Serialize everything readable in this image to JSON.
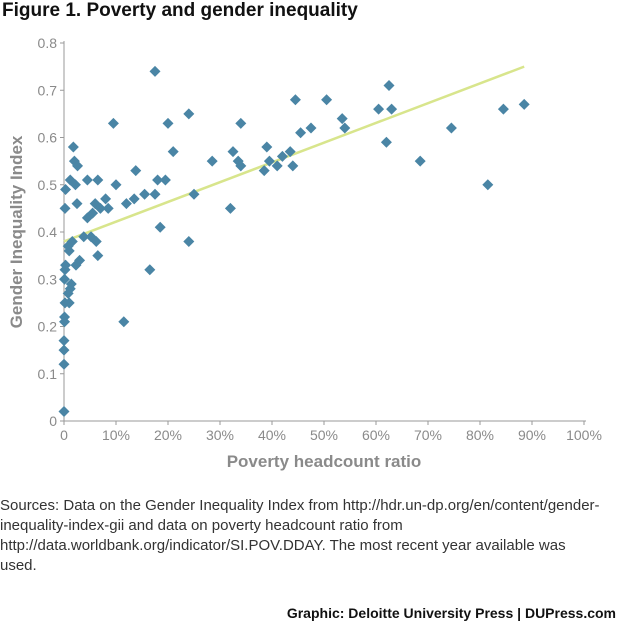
{
  "figure": {
    "title": "Figure 1. Poverty and gender inequality"
  },
  "sources": "Sources: Data on the Gender Inequality Index from http://hdr.un-dp.org/en/content/gender-inequality-index-gii and data on poverty headcount ratio from http://data.worldbank.org/indicator/SI.POV.DDAY. The most recent year available was used.",
  "credit": "Graphic: Deloitte University Press  |  DUPress.com",
  "colors": {
    "marker": "#4a85a5",
    "trendline": "#d8e58c",
    "axis": "#999999",
    "axis_label": "#8a8a8a"
  },
  "chart_data": {
    "type": "scatter",
    "title": "",
    "xlabel": "Poverty headcount ratio",
    "ylabel": "Gender Inequality Index",
    "xlim": [
      0,
      100
    ],
    "ylim": [
      0,
      0.8
    ],
    "x_ticks": [
      0,
      10,
      20,
      30,
      40,
      50,
      60,
      70,
      80,
      90,
      100
    ],
    "x_tick_labels": [
      "0",
      "10%",
      "20%",
      "30%",
      "40%",
      "50%",
      "60%",
      "70%",
      "80%",
      "90%",
      "100%"
    ],
    "y_ticks": [
      0,
      0.1,
      0.2,
      0.3,
      0.4,
      0.5,
      0.6,
      0.7,
      0.8
    ],
    "y_tick_labels": [
      "0",
      "0.1",
      "0.2",
      "0.3",
      "0.4",
      "0.5",
      "0.6",
      "0.7",
      "0.8"
    ],
    "grid": false,
    "trendline": {
      "x": [
        0,
        88.5
      ],
      "y": [
        0.38,
        0.75
      ]
    },
    "points": [
      [
        0,
        0.02
      ],
      [
        0,
        0.12
      ],
      [
        0,
        0.15
      ],
      [
        0,
        0.17
      ],
      [
        0.1,
        0.21
      ],
      [
        0.1,
        0.22
      ],
      [
        0.2,
        0.25
      ],
      [
        0.1,
        0.3
      ],
      [
        0.2,
        0.32
      ],
      [
        0.3,
        0.33
      ],
      [
        0.2,
        0.45
      ],
      [
        0.3,
        0.49
      ],
      [
        0.8,
        0.27
      ],
      [
        1.0,
        0.25
      ],
      [
        1.2,
        0.28
      ],
      [
        1.0,
        0.36
      ],
      [
        0.8,
        0.37
      ],
      [
        1.4,
        0.29
      ],
      [
        1.6,
        0.38
      ],
      [
        1.2,
        0.51
      ],
      [
        1.8,
        0.58
      ],
      [
        2.0,
        0.55
      ],
      [
        2.6,
        0.54
      ],
      [
        2.2,
        0.5
      ],
      [
        2.5,
        0.46
      ],
      [
        2.3,
        0.33
      ],
      [
        3.0,
        0.34
      ],
      [
        3.8,
        0.39
      ],
      [
        4.5,
        0.43
      ],
      [
        4.5,
        0.51
      ],
      [
        5.2,
        0.39
      ],
      [
        5.5,
        0.44
      ],
      [
        6.0,
        0.46
      ],
      [
        6.2,
        0.38
      ],
      [
        6.5,
        0.35
      ],
      [
        6.5,
        0.51
      ],
      [
        7.0,
        0.45
      ],
      [
        8.0,
        0.47
      ],
      [
        8.5,
        0.45
      ],
      [
        9.5,
        0.63
      ],
      [
        10.0,
        0.5
      ],
      [
        11.5,
        0.21
      ],
      [
        12.0,
        0.46
      ],
      [
        13.5,
        0.47
      ],
      [
        13.8,
        0.53
      ],
      [
        15.5,
        0.48
      ],
      [
        16.5,
        0.32
      ],
      [
        17.5,
        0.74
      ],
      [
        17.5,
        0.48
      ],
      [
        18.0,
        0.51
      ],
      [
        18.5,
        0.41
      ],
      [
        19.5,
        0.51
      ],
      [
        20.0,
        0.63
      ],
      [
        21.0,
        0.57
      ],
      [
        24.0,
        0.38
      ],
      [
        24.0,
        0.65
      ],
      [
        25.0,
        0.48
      ],
      [
        28.5,
        0.55
      ],
      [
        32.0,
        0.45
      ],
      [
        32.5,
        0.57
      ],
      [
        33.5,
        0.55
      ],
      [
        34.0,
        0.63
      ],
      [
        34.0,
        0.54
      ],
      [
        38.5,
        0.53
      ],
      [
        39.0,
        0.58
      ],
      [
        39.5,
        0.55
      ],
      [
        41.0,
        0.54
      ],
      [
        42.0,
        0.56
      ],
      [
        43.5,
        0.57
      ],
      [
        44.0,
        0.54
      ],
      [
        44.5,
        0.68
      ],
      [
        45.5,
        0.61
      ],
      [
        47.5,
        0.62
      ],
      [
        50.5,
        0.68
      ],
      [
        53.5,
        0.64
      ],
      [
        54.0,
        0.62
      ],
      [
        60.5,
        0.66
      ],
      [
        62.0,
        0.59
      ],
      [
        62.5,
        0.71
      ],
      [
        63.0,
        0.66
      ],
      [
        68.5,
        0.55
      ],
      [
        74.5,
        0.62
      ],
      [
        81.5,
        0.5
      ],
      [
        84.5,
        0.66
      ],
      [
        88.5,
        0.67
      ]
    ]
  }
}
